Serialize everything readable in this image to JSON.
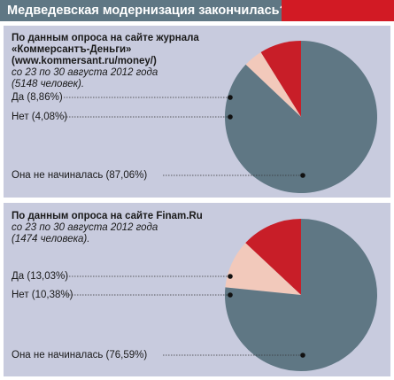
{
  "header": {
    "title": "Медведевская модернизация закончилась?"
  },
  "colors": {
    "header_bg": "#5f7784",
    "accent": "#d21a24",
    "panel_bg": "#c8cbde"
  },
  "panels": [
    {
      "source_bold": [
        "По данным опроса на сайте журнала",
        "«Коммерсантъ-Деньги»",
        "(www.kommersant.ru/money/)"
      ],
      "source_italic": [
        "со 23 по 30 августа 2012 года",
        "(5148 человек)."
      ],
      "labels": [
        "Да (8,86%)",
        "Нет (4,08%)",
        "Она не начиналась (87,06%)"
      ]
    },
    {
      "source_bold": [
        "По данным опроса на сайте Finam.Ru"
      ],
      "source_italic": [
        "со 23 по 30 августа 2012 года",
        "(1474 человека)."
      ],
      "labels": [
        "Да (13,03%)",
        "Нет (10,38%)",
        "Она не начиналась (76,59%)"
      ]
    }
  ],
  "chart_data": [
    {
      "type": "pie",
      "title": "По данным опроса на сайте журнала «Коммерсантъ-Деньги» (www.kommersant.ru/money/)",
      "categories": [
        "Да",
        "Нет",
        "Она не начиналась"
      ],
      "values": [
        8.86,
        4.08,
        87.06
      ],
      "colors": [
        "#c81e28",
        "#f2c9bb",
        "#5f7784"
      ]
    },
    {
      "type": "pie",
      "title": "По данным опроса на сайте Finam.Ru",
      "categories": [
        "Да",
        "Нет",
        "Она не начиналась"
      ],
      "values": [
        13.03,
        10.38,
        76.59
      ],
      "colors": [
        "#c81e28",
        "#f2c9bb",
        "#5f7784"
      ]
    }
  ]
}
